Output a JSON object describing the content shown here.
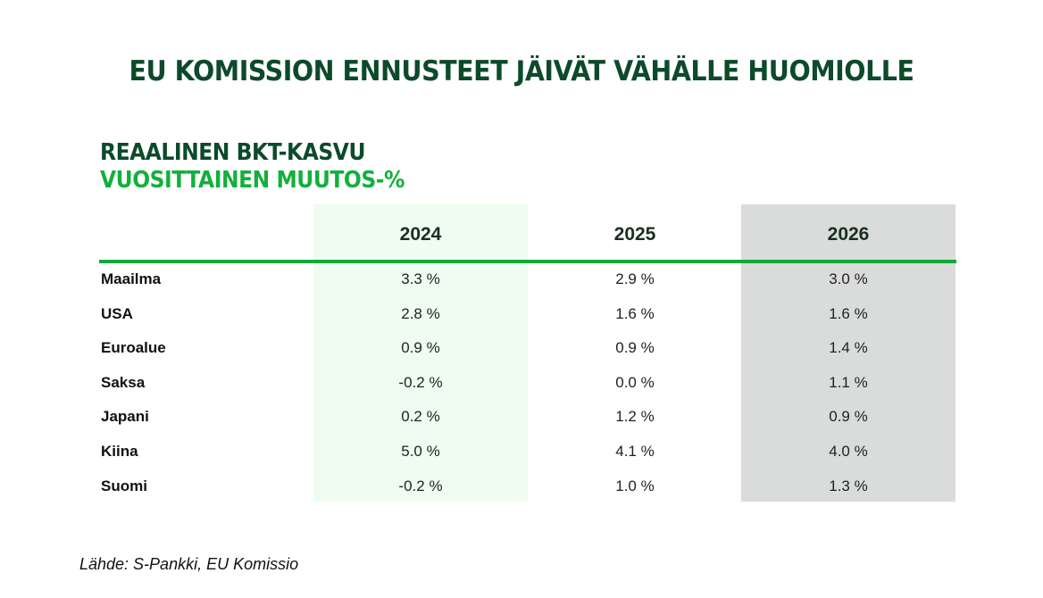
{
  "title": "EU KOMISSION ENNUSTEET JÄIVÄT VÄHÄLLE HUOMIOLLE",
  "chart_data": {
    "type": "table",
    "title": "REAALINEN BKT-KASVU",
    "subtitle": "VUOSITTAINEN MUUTOS-%",
    "columns": [
      "2024",
      "2025",
      "2026"
    ],
    "rows": [
      {
        "label": "Maailma",
        "values": [
          "3.3 %",
          "2.9 %",
          "3.0 %"
        ]
      },
      {
        "label": "USA",
        "values": [
          "2.8 %",
          "1.6 %",
          "1.6 %"
        ]
      },
      {
        "label": "Euroalue",
        "values": [
          "0.9 %",
          "0.9 %",
          "1.4 %"
        ]
      },
      {
        "label": "Saksa",
        "values": [
          "-0.2 %",
          "0.0 %",
          "1.1 %"
        ]
      },
      {
        "label": "Japani",
        "values": [
          "0.2 %",
          "1.2 %",
          "0.9 %"
        ]
      },
      {
        "label": "Kiina",
        "values": [
          "5.0 %",
          "4.1 %",
          "4.0 %"
        ]
      },
      {
        "label": "Suomi",
        "values": [
          "-0.2 %",
          "1.0 %",
          "1.3 %"
        ]
      }
    ]
  },
  "source": "Lähde: S-Pankki, EU Komissio",
  "colors": {
    "title": "#0c4a2a",
    "subtitle": "#11b03c",
    "rule": "#16a83a",
    "col_2024_bg": "#eefdef",
    "col_2026_bg": "#d9dcda"
  }
}
